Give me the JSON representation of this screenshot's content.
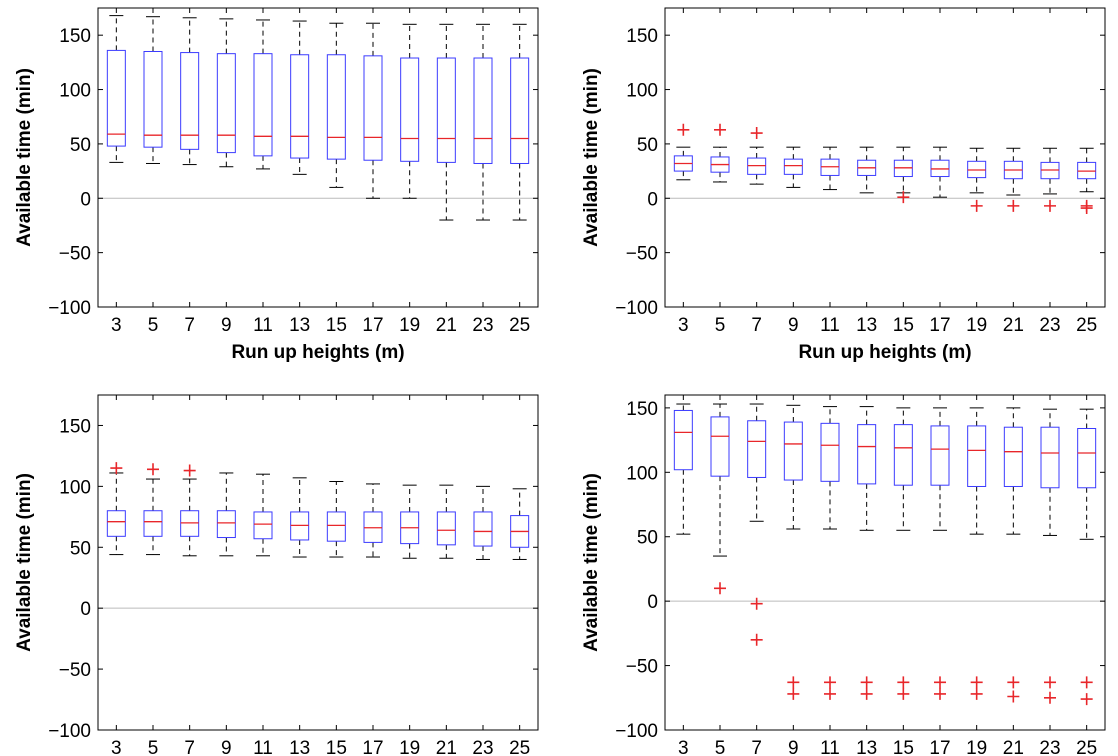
{
  "chart_data": [
    {
      "type": "boxplot",
      "xlabel": "Run up heights (m)",
      "ylabel": "Available time (min)",
      "ylim": [
        -100,
        175
      ],
      "yticks": [
        -100,
        -50,
        0,
        50,
        100,
        150
      ],
      "zero_line": true,
      "categories": [
        "3",
        "5",
        "7",
        "9",
        "11",
        "13",
        "15",
        "17",
        "19",
        "21",
        "23",
        "25"
      ],
      "boxes": [
        {
          "wlo": 33,
          "q1": 48,
          "med": 59,
          "q3": 136,
          "whi": 168,
          "outliers": []
        },
        {
          "wlo": 32,
          "q1": 47,
          "med": 58,
          "q3": 135,
          "whi": 167,
          "outliers": []
        },
        {
          "wlo": 31,
          "q1": 45,
          "med": 58,
          "q3": 134,
          "whi": 166,
          "outliers": []
        },
        {
          "wlo": 29,
          "q1": 42,
          "med": 58,
          "q3": 133,
          "whi": 165,
          "outliers": []
        },
        {
          "wlo": 27,
          "q1": 39,
          "med": 57,
          "q3": 133,
          "whi": 164,
          "outliers": []
        },
        {
          "wlo": 22,
          "q1": 37,
          "med": 57,
          "q3": 132,
          "whi": 163,
          "outliers": []
        },
        {
          "wlo": 10,
          "q1": 36,
          "med": 56,
          "q3": 132,
          "whi": 161,
          "outliers": []
        },
        {
          "wlo": 0,
          "q1": 35,
          "med": 56,
          "q3": 131,
          "whi": 161,
          "outliers": []
        },
        {
          "wlo": 0,
          "q1": 34,
          "med": 55,
          "q3": 129,
          "whi": 160,
          "outliers": []
        },
        {
          "wlo": -20,
          "q1": 33,
          "med": 55,
          "q3": 129,
          "whi": 160,
          "outliers": []
        },
        {
          "wlo": -20,
          "q1": 32,
          "med": 55,
          "q3": 129,
          "whi": 160,
          "outliers": []
        },
        {
          "wlo": -20,
          "q1": 32,
          "med": 55,
          "q3": 129,
          "whi": 160,
          "outliers": []
        }
      ]
    },
    {
      "type": "boxplot",
      "xlabel": "Run up heights (m)",
      "ylabel": "Available time (min)",
      "ylim": [
        -100,
        175
      ],
      "yticks": [
        -100,
        -50,
        0,
        50,
        100,
        150
      ],
      "zero_line": true,
      "categories": [
        "3",
        "5",
        "7",
        "9",
        "11",
        "13",
        "15",
        "17",
        "19",
        "21",
        "23",
        "25"
      ],
      "boxes": [
        {
          "wlo": 17,
          "q1": 25,
          "med": 32,
          "q3": 39,
          "whi": 47,
          "outliers": [
            63
          ]
        },
        {
          "wlo": 15,
          "q1": 24,
          "med": 31,
          "q3": 38,
          "whi": 47,
          "outliers": [
            63
          ]
        },
        {
          "wlo": 13,
          "q1": 22,
          "med": 30,
          "q3": 37,
          "whi": 47,
          "outliers": [
            60
          ]
        },
        {
          "wlo": 10,
          "q1": 22,
          "med": 30,
          "q3": 36,
          "whi": 47,
          "outliers": []
        },
        {
          "wlo": 8,
          "q1": 21,
          "med": 29,
          "q3": 36,
          "whi": 47,
          "outliers": []
        },
        {
          "wlo": 5,
          "q1": 21,
          "med": 28,
          "q3": 35,
          "whi": 47,
          "outliers": []
        },
        {
          "wlo": 5,
          "q1": 20,
          "med": 28,
          "q3": 35,
          "whi": 47,
          "outliers": [
            1
          ]
        },
        {
          "wlo": 1,
          "q1": 20,
          "med": 27,
          "q3": 35,
          "whi": 47,
          "outliers": []
        },
        {
          "wlo": 5,
          "q1": 19,
          "med": 26,
          "q3": 34,
          "whi": 46,
          "outliers": [
            -7
          ]
        },
        {
          "wlo": 3,
          "q1": 18,
          "med": 26,
          "q3": 34,
          "whi": 46,
          "outliers": [
            -7
          ]
        },
        {
          "wlo": 4,
          "q1": 18,
          "med": 26,
          "q3": 33,
          "whi": 46,
          "outliers": [
            -7
          ]
        },
        {
          "wlo": 6,
          "q1": 18,
          "med": 25,
          "q3": 33,
          "whi": 46,
          "outliers": [
            -7,
            -9
          ]
        }
      ]
    },
    {
      "type": "boxplot",
      "xlabel": "Run up heights (m)",
      "ylabel": "Available time (min)",
      "ylim": [
        -100,
        175
      ],
      "yticks": [
        -100,
        -50,
        0,
        50,
        100,
        150
      ],
      "zero_line": true,
      "categories": [
        "3",
        "5",
        "7",
        "9",
        "11",
        "13",
        "15",
        "17",
        "19",
        "21",
        "23",
        "25"
      ],
      "boxes": [
        {
          "wlo": 44,
          "q1": 59,
          "med": 71,
          "q3": 80,
          "whi": 111,
          "outliers": [
            115
          ]
        },
        {
          "wlo": 44,
          "q1": 59,
          "med": 71,
          "q3": 80,
          "whi": 106,
          "outliers": [
            114
          ]
        },
        {
          "wlo": 43,
          "q1": 59,
          "med": 70,
          "q3": 80,
          "whi": 106,
          "outliers": [
            113
          ]
        },
        {
          "wlo": 43,
          "q1": 58,
          "med": 70,
          "q3": 80,
          "whi": 111,
          "outliers": []
        },
        {
          "wlo": 43,
          "q1": 57,
          "med": 69,
          "q3": 79,
          "whi": 110,
          "outliers": []
        },
        {
          "wlo": 42,
          "q1": 56,
          "med": 68,
          "q3": 79,
          "whi": 107,
          "outliers": []
        },
        {
          "wlo": 42,
          "q1": 55,
          "med": 68,
          "q3": 79,
          "whi": 104,
          "outliers": []
        },
        {
          "wlo": 42,
          "q1": 54,
          "med": 66,
          "q3": 79,
          "whi": 102,
          "outliers": []
        },
        {
          "wlo": 41,
          "q1": 53,
          "med": 66,
          "q3": 79,
          "whi": 101,
          "outliers": []
        },
        {
          "wlo": 41,
          "q1": 52,
          "med": 64,
          "q3": 79,
          "whi": 101,
          "outliers": []
        },
        {
          "wlo": 40,
          "q1": 51,
          "med": 63,
          "q3": 79,
          "whi": 100,
          "outliers": []
        },
        {
          "wlo": 40,
          "q1": 50,
          "med": 63,
          "q3": 76,
          "whi": 98,
          "outliers": []
        }
      ]
    },
    {
      "type": "boxplot",
      "xlabel": "Run up heights (m)",
      "ylabel": "Available time (min)",
      "ylim": [
        -100,
        160
      ],
      "yticks": [
        -100,
        -50,
        0,
        50,
        100,
        150
      ],
      "zero_line": true,
      "categories": [
        "3",
        "5",
        "7",
        "9",
        "11",
        "13",
        "15",
        "17",
        "19",
        "21",
        "23",
        "25"
      ],
      "boxes": [
        {
          "wlo": 52,
          "q1": 102,
          "med": 131,
          "q3": 148,
          "whi": 153,
          "outliers": []
        },
        {
          "wlo": 35,
          "q1": 97,
          "med": 128,
          "q3": 143,
          "whi": 153,
          "outliers": [
            10
          ]
        },
        {
          "wlo": 62,
          "q1": 96,
          "med": 124,
          "q3": 140,
          "whi": 153,
          "outliers": [
            -2,
            -30
          ]
        },
        {
          "wlo": 56,
          "q1": 94,
          "med": 122,
          "q3": 139,
          "whi": 152,
          "outliers": [
            -63,
            -72
          ]
        },
        {
          "wlo": 56,
          "q1": 93,
          "med": 121,
          "q3": 138,
          "whi": 151,
          "outliers": [
            -63,
            -72
          ]
        },
        {
          "wlo": 55,
          "q1": 91,
          "med": 120,
          "q3": 137,
          "whi": 151,
          "outliers": [
            -63,
            -72
          ]
        },
        {
          "wlo": 55,
          "q1": 90,
          "med": 119,
          "q3": 137,
          "whi": 150,
          "outliers": [
            -63,
            -72
          ]
        },
        {
          "wlo": 55,
          "q1": 90,
          "med": 118,
          "q3": 136,
          "whi": 150,
          "outliers": [
            -63,
            -72
          ]
        },
        {
          "wlo": 52,
          "q1": 89,
          "med": 117,
          "q3": 136,
          "whi": 150,
          "outliers": [
            -63,
            -72
          ]
        },
        {
          "wlo": 52,
          "q1": 89,
          "med": 116,
          "q3": 135,
          "whi": 150,
          "outliers": [
            -63,
            -74
          ]
        },
        {
          "wlo": 51,
          "q1": 88,
          "med": 115,
          "q3": 135,
          "whi": 149,
          "outliers": [
            -63,
            -75
          ]
        },
        {
          "wlo": 48,
          "q1": 88,
          "med": 115,
          "q3": 134,
          "whi": 149,
          "outliers": [
            -63,
            -76
          ]
        }
      ]
    }
  ]
}
